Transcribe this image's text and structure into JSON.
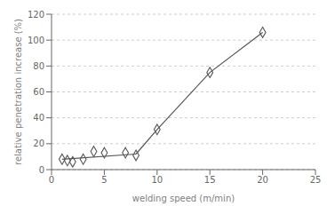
{
  "chart_data": {
    "type": "scatter",
    "xlabel": "welding speed   (m/min)",
    "ylabel": "relative penetration increase (%)",
    "xlim": [
      0,
      25
    ],
    "ylim": [
      0,
      120
    ],
    "xticks": [
      0,
      5,
      10,
      15,
      20,
      25
    ],
    "yticks": [
      0,
      20,
      40,
      60,
      80,
      100,
      120
    ],
    "grid": "y",
    "series": [
      {
        "type": "line",
        "color": "#555555",
        "x": [
          1.0,
          8.0
        ],
        "values": [
          8.0,
          12.0
        ]
      },
      {
        "type": "line",
        "color": "#555555",
        "x": [
          8.0,
          10.0,
          15.0,
          20.0
        ],
        "values": [
          12.0,
          31,
          75,
          106
        ]
      },
      {
        "type": "scatter",
        "color": "#555555",
        "marker": "diamond",
        "x": [
          1.0,
          1.5,
          2.0,
          3.0,
          4.0,
          5.0,
          7.0,
          8.0,
          10.0,
          15.0,
          20.0
        ],
        "values": [
          8,
          7,
          6,
          8,
          14,
          13,
          13,
          11,
          31,
          75,
          106
        ]
      }
    ]
  }
}
